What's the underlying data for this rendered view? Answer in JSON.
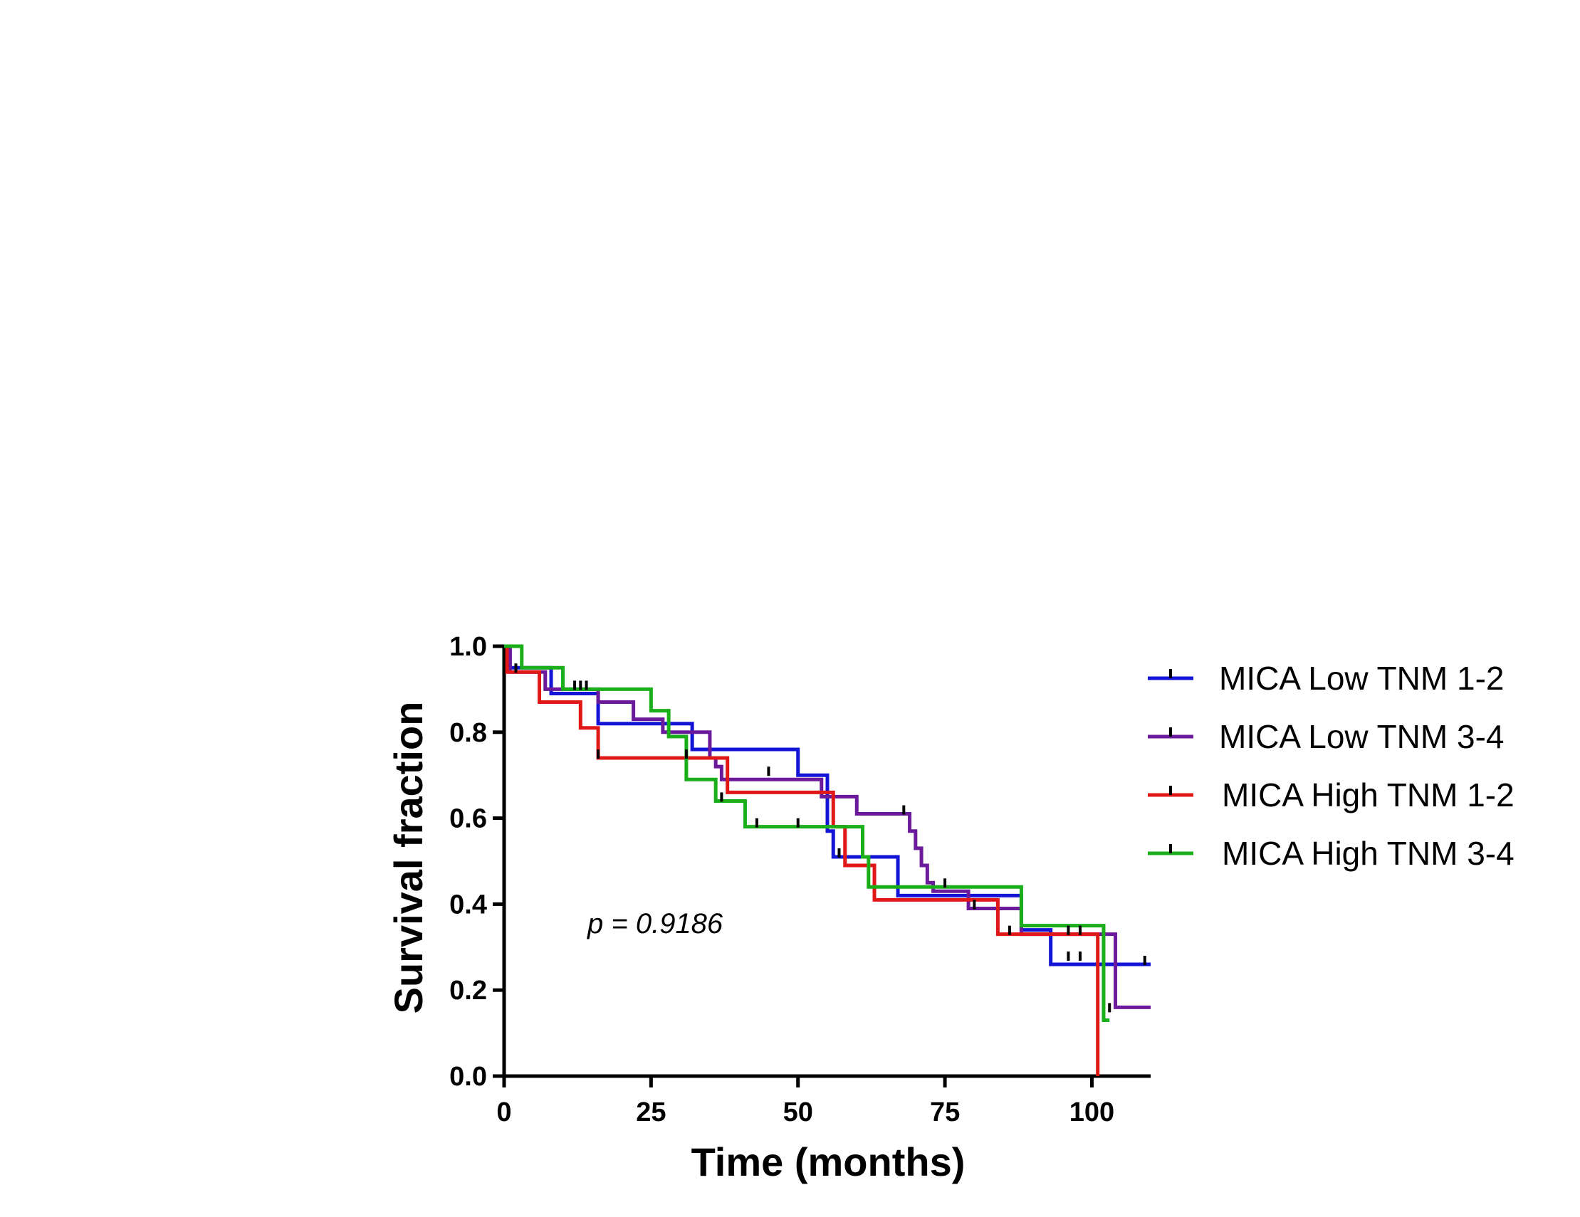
{
  "chart_data": {
    "type": "line",
    "subtype": "kaplan-meier-step",
    "title": "",
    "xlabel": "Time (months)",
    "ylabel": "Survival fraction",
    "xlim": [
      0,
      110
    ],
    "ylim": [
      0,
      1.0
    ],
    "x_ticks": [
      0,
      25,
      50,
      75,
      100
    ],
    "x_tick_labels": [
      "0",
      "25",
      "50",
      "75",
      "100"
    ],
    "y_ticks": [
      0.0,
      0.2,
      0.4,
      0.6,
      0.8,
      1.0
    ],
    "y_tick_labels": [
      "0.0",
      "0.2",
      "0.4",
      "0.6",
      "0.8",
      "1.0"
    ],
    "grid": false,
    "legend_position": "right",
    "annotation": "p = 0.9186",
    "series": [
      {
        "name": "MICA Low TNM 1-2",
        "color": "#1414d6",
        "steps": [
          [
            0,
            1.0
          ],
          [
            1,
            0.95
          ],
          [
            8,
            0.89
          ],
          [
            16,
            0.82
          ],
          [
            32,
            0.76
          ],
          [
            50,
            0.7
          ],
          [
            55,
            0.57
          ],
          [
            56,
            0.51
          ],
          [
            67,
            0.42
          ],
          [
            88,
            0.34
          ],
          [
            93,
            0.26
          ],
          [
            110,
            0.26
          ]
        ],
        "censored": [
          [
            109,
            0.26
          ]
        ]
      },
      {
        "name": "MICA Low TNM 3-4",
        "color": "#6a1a9a",
        "steps": [
          [
            0,
            1.0
          ],
          [
            1,
            0.94
          ],
          [
            7,
            0.9
          ],
          [
            16,
            0.87
          ],
          [
            22,
            0.83
          ],
          [
            27,
            0.8
          ],
          [
            35,
            0.74
          ],
          [
            36,
            0.72
          ],
          [
            37,
            0.69
          ],
          [
            54,
            0.65
          ],
          [
            60,
            0.61
          ],
          [
            69,
            0.57
          ],
          [
            70,
            0.53
          ],
          [
            71,
            0.49
          ],
          [
            72,
            0.45
          ],
          [
            73,
            0.43
          ],
          [
            79,
            0.39
          ],
          [
            88,
            0.33
          ],
          [
            104,
            0.16
          ],
          [
            110,
            0.16
          ]
        ],
        "censored": [
          [
            2,
            0.94
          ],
          [
            68,
            0.61
          ],
          [
            80,
            0.39
          ]
        ]
      },
      {
        "name": "MICA High TNM 1-2",
        "color": "#e01818",
        "steps": [
          [
            0,
            1.0
          ],
          [
            0.5,
            0.94
          ],
          [
            6,
            0.87
          ],
          [
            13,
            0.81
          ],
          [
            16,
            0.74
          ],
          [
            38,
            0.66
          ],
          [
            56,
            0.58
          ],
          [
            58,
            0.49
          ],
          [
            63,
            0.41
          ],
          [
            84,
            0.33
          ],
          [
            101,
            0.0
          ]
        ],
        "censored": [
          [
            16,
            0.74
          ],
          [
            31,
            0.74
          ],
          [
            86,
            0.33
          ],
          [
            96,
            0.33
          ],
          [
            98,
            0.33
          ]
        ]
      },
      {
        "name": "MICA High TNM 3-4",
        "color": "#1aae1a",
        "steps": [
          [
            0,
            1.0
          ],
          [
            3,
            0.95
          ],
          [
            10,
            0.9
          ],
          [
            25,
            0.85
          ],
          [
            28,
            0.79
          ],
          [
            31,
            0.69
          ],
          [
            36,
            0.64
          ],
          [
            41,
            0.58
          ],
          [
            61,
            0.51
          ],
          [
            62,
            0.44
          ],
          [
            88,
            0.35
          ],
          [
            102,
            0.13
          ],
          [
            103,
            0.13
          ]
        ],
        "censored": [
          [
            12,
            0.9
          ],
          [
            13,
            0.9
          ],
          [
            14,
            0.9
          ],
          [
            37,
            0.64
          ],
          [
            43,
            0.58
          ],
          [
            45,
            0.7
          ],
          [
            50,
            0.58
          ],
          [
            57,
            0.51
          ],
          [
            75,
            0.44
          ],
          [
            96,
            0.27
          ],
          [
            98,
            0.27
          ],
          [
            103,
            0.15
          ]
        ]
      }
    ]
  }
}
